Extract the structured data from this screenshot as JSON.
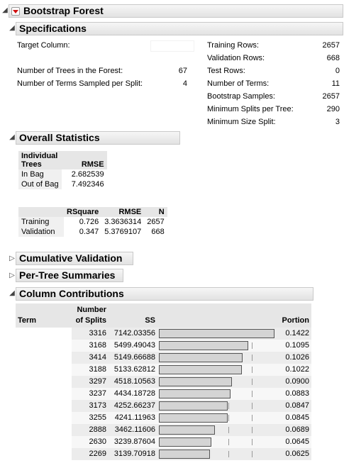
{
  "report": {
    "title": "Bootstrap Forest"
  },
  "specifications": {
    "title": "Specifications",
    "left": [
      {
        "label": "Target Column:",
        "value": ""
      },
      {
        "label": "Number of Trees in the Forest:",
        "value": "67"
      },
      {
        "label": "Number of Terms Sampled per Split:",
        "value": "4"
      }
    ],
    "right": [
      {
        "label": "Training Rows:",
        "value": "2657"
      },
      {
        "label": "Validation Rows:",
        "value": "668"
      },
      {
        "label": "Test Rows:",
        "value": "0"
      },
      {
        "label": "Number of Terms:",
        "value": "11"
      },
      {
        "label": "Bootstrap Samples:",
        "value": "2657"
      },
      {
        "label": "Minimum Splits per Tree:",
        "value": "290"
      },
      {
        "label": "Minimum Size Split:",
        "value": "3"
      }
    ]
  },
  "overall": {
    "title": "Overall Statistics",
    "trees_table": {
      "h1": "Individual",
      "h2": "Trees",
      "h3": "RMSE",
      "rows": [
        {
          "label": "In Bag",
          "rmse": "2.682539"
        },
        {
          "label": "Out of Bag",
          "rmse": "7.492346"
        }
      ]
    },
    "fit_table": {
      "headers": [
        "RSquare",
        "RMSE",
        "N"
      ],
      "rows": [
        {
          "label": "Training",
          "rsq": "0.726",
          "rmse": "3.3636314",
          "n": "2657"
        },
        {
          "label": "Validation",
          "rsq": "0.347",
          "rmse": "5.3769107",
          "n": "668"
        }
      ]
    }
  },
  "cumulative": {
    "title": "Cumulative Validation"
  },
  "pertree": {
    "title": "Per-Tree Summaries"
  },
  "contributions": {
    "title": "Column Contributions",
    "headers": {
      "term": "Term",
      "splits1": "Number",
      "splits2": "of Splits",
      "ss": "SS",
      "portion": "Portion"
    },
    "rows": [
      {
        "term": "",
        "splits": "3316",
        "ss": "7142.03356",
        "portion": "0.1422",
        "value": 0.1422
      },
      {
        "term": "",
        "splits": "3168",
        "ss": "5499.49043",
        "portion": "0.1095",
        "value": 0.1095
      },
      {
        "term": "",
        "splits": "3414",
        "ss": "5149.66688",
        "portion": "0.1026",
        "value": 0.1026
      },
      {
        "term": "",
        "splits": "3188",
        "ss": "5133.62812",
        "portion": "0.1022",
        "value": 0.1022
      },
      {
        "term": "",
        "splits": "3297",
        "ss": "4518.10563",
        "portion": "0.0900",
        "value": 0.09
      },
      {
        "term": "",
        "splits": "3237",
        "ss": "4434.18728",
        "portion": "0.0883",
        "value": 0.0883
      },
      {
        "term": "",
        "splits": "3173",
        "ss": "4252.66237",
        "portion": "0.0847",
        "value": 0.0847
      },
      {
        "term": "",
        "splits": "3255",
        "ss": "4241.11963",
        "portion": "0.0845",
        "value": 0.0845
      },
      {
        "term": "",
        "splits": "2888",
        "ss": "3462.11606",
        "portion": "0.0689",
        "value": 0.0689
      },
      {
        "term": "",
        "splits": "2630",
        "ss": "3239.87604",
        "portion": "0.0645",
        "value": 0.0645
      },
      {
        "term": "",
        "splits": "2269",
        "ss": "3139.70918",
        "portion": "0.0625",
        "value": 0.0625
      }
    ]
  }
}
